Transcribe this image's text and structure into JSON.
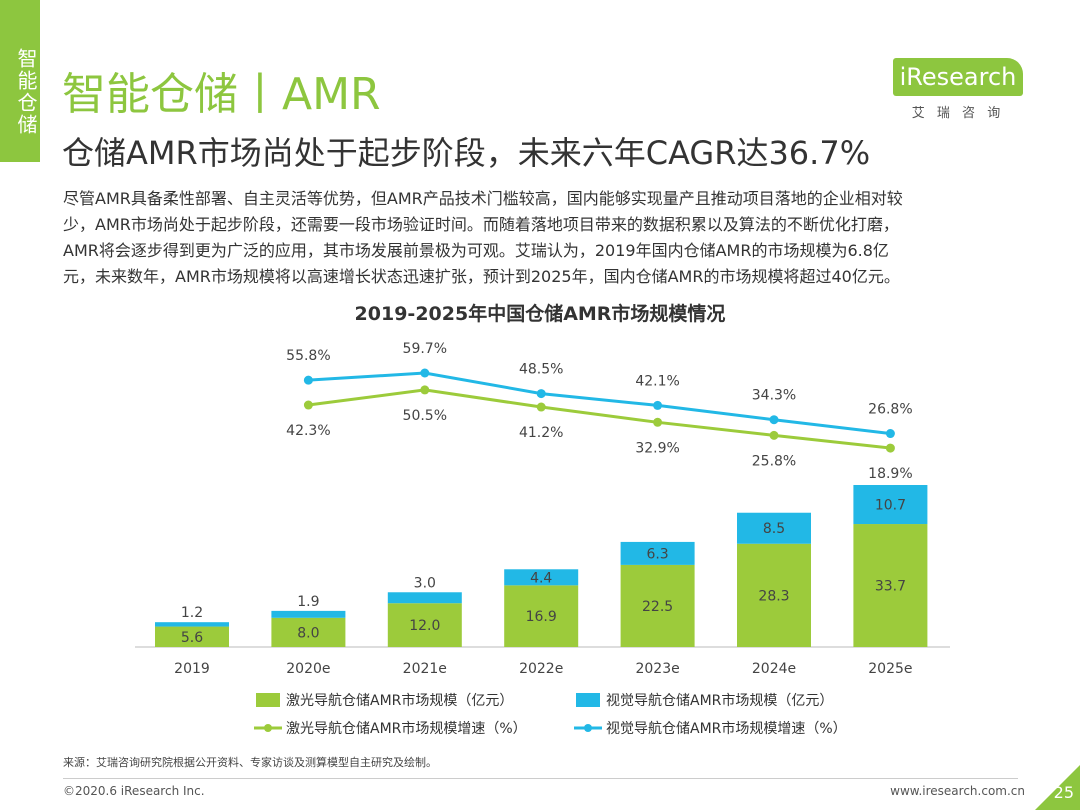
{
  "header": {
    "side_tab": "智能仓储",
    "title": "智能仓储丨AMR",
    "subtitle": "仓储AMR市场尚处于起步阶段，未来六年CAGR达36.7%",
    "logo": "iResearch",
    "logo_sub": "艾 瑞 咨 询"
  },
  "body": [
    "尽管AMR具备柔性部署、自主灵活等优势，但AMR产品技术门槛较高，国内能够实现量产且推动项目落地的企业相对较",
    "少，AMR市场尚处于起步阶段，还需要一段市场验证时间。而随着落地项目带来的数据积累以及算法的不断优化打磨，",
    "AMR将会逐步得到更为广泛的应用，其市场发展前景极为可观。艾瑞认为，2019年国内仓储AMR的市场规模为6.8亿",
    "元，未来数年，AMR市场规模将以高速增长状态迅速扩张，预计到2025年，国内仓储AMR的市场规模将超过40亿元。"
  ],
  "chart_data": {
    "type": "bar",
    "title": "2019-2025年中国仓储AMR市场规模情况",
    "categories": [
      "2019",
      "2020e",
      "2021e",
      "2022e",
      "2023e",
      "2024e",
      "2025e"
    ],
    "series": [
      {
        "name": "激光导航仓储AMR市场规模（亿元）",
        "type": "bar",
        "color": "#9ccb3b",
        "values": [
          5.6,
          8.0,
          12.0,
          16.9,
          22.5,
          28.3,
          33.7
        ],
        "value_labels": [
          "5.6",
          "8.0",
          "12.0",
          "16.9",
          "22.5",
          "28.3",
          "33.7"
        ]
      },
      {
        "name": "视觉导航仓储AMR市场规模（亿元）",
        "type": "bar",
        "color": "#22b8e6",
        "values": [
          1.2,
          1.9,
          3.0,
          4.4,
          6.3,
          8.5,
          10.7
        ],
        "value_labels": [
          "1.2",
          "1.9",
          "3.0",
          "4.4",
          "6.3",
          "8.5",
          "10.7"
        ]
      },
      {
        "name": "激光导航仓储AMR市场规模增速（%）",
        "type": "line",
        "color": "#9ccb3b",
        "values": [
          null,
          42.3,
          50.5,
          41.2,
          32.9,
          25.8,
          18.9
        ],
        "value_labels": [
          null,
          "42.3%",
          "50.5%",
          "41.2%",
          "32.9%",
          "25.8%",
          "18.9%"
        ]
      },
      {
        "name": "视觉导航仓储AMR市场规模增速（%）",
        "type": "line",
        "color": "#22b8e6",
        "values": [
          null,
          55.8,
          59.7,
          48.5,
          42.1,
          34.3,
          26.8
        ],
        "value_labels": [
          null,
          "55.8%",
          "59.7%",
          "48.5%",
          "42.1%",
          "34.3%",
          "26.8%"
        ]
      }
    ]
  },
  "footer": {
    "source": "来源：艾瑞咨询研究院根据公开资料、专家访谈及测算模型自主研究及绘制。",
    "copyright": "©2020.6 iResearch Inc.",
    "url": "www.iresearch.com.cn",
    "page": "25"
  }
}
